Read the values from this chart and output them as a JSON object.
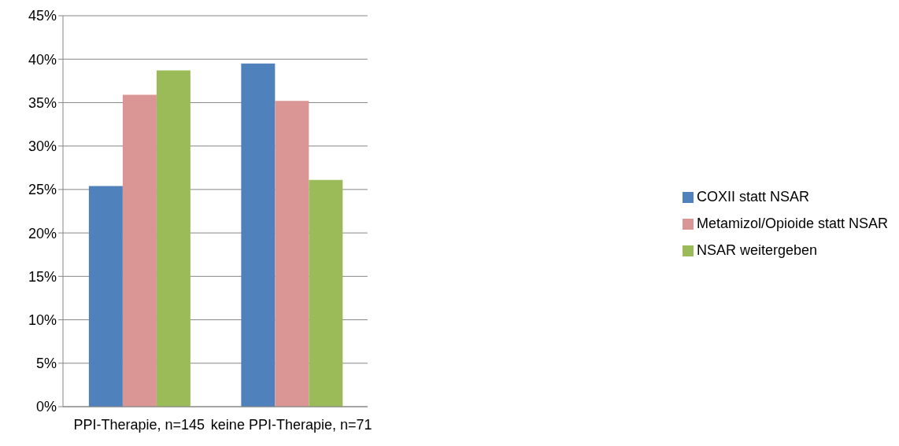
{
  "chart_data": {
    "type": "bar",
    "categories": [
      "PPI-Therapie, n=145",
      "keine PPI-Therapie, n=71"
    ],
    "series": [
      {
        "name": "COXII statt NSAR",
        "color": "#4f81bd",
        "values": [
          25.4,
          39.5
        ]
      },
      {
        "name": "Metamizol/Opioide statt NSAR",
        "color": "#d99694",
        "values": [
          35.9,
          35.2
        ]
      },
      {
        "name": "NSAR weitergeben",
        "color": "#9bbb59",
        "values": [
          38.7,
          26.1
        ]
      }
    ],
    "ylim": [
      0,
      45
    ],
    "yticks": [
      {
        "value": 0,
        "label": "0%"
      },
      {
        "value": 5,
        "label": "5%"
      },
      {
        "value": 10,
        "label": "10%"
      },
      {
        "value": 15,
        "label": "15%"
      },
      {
        "value": 20,
        "label": "20%"
      },
      {
        "value": 25,
        "label": "25%"
      },
      {
        "value": 30,
        "label": "30%"
      },
      {
        "value": 35,
        "label": "35%"
      },
      {
        "value": 40,
        "label": "40%"
      },
      {
        "value": 45,
        "label": "45%"
      }
    ],
    "grid": "y",
    "legend": "right"
  }
}
